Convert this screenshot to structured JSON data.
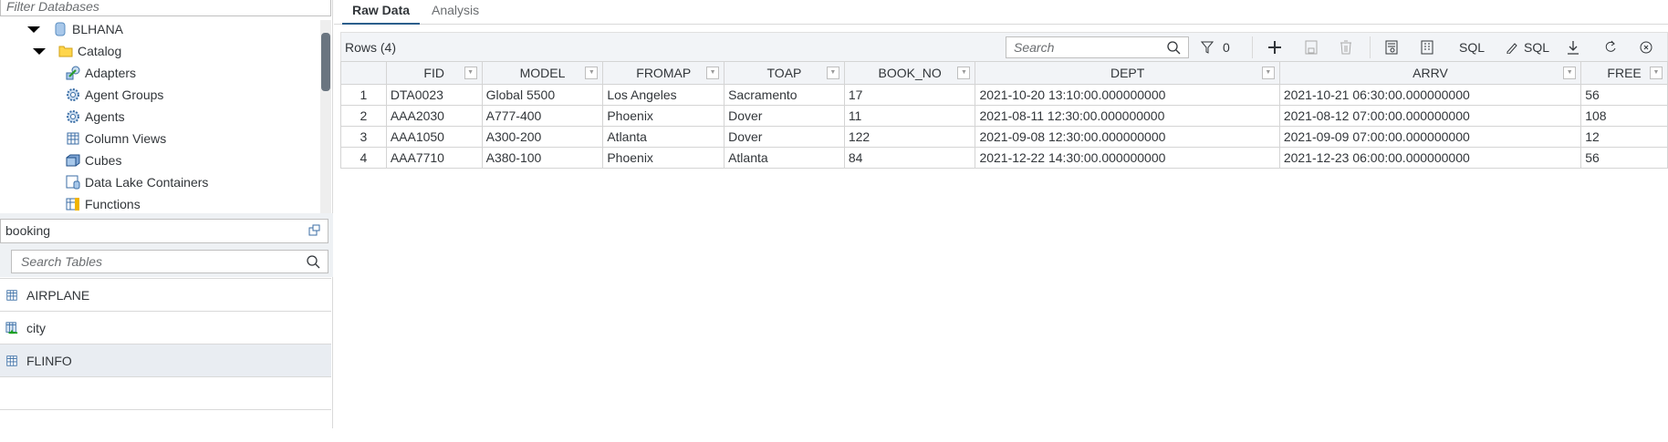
{
  "left": {
    "filter_placeholder": "Filter Databases",
    "tree": [
      {
        "label": "BLHANA",
        "icon": "database-icon",
        "level": 0,
        "expanded": true
      },
      {
        "label": "Catalog",
        "icon": "folder-icon",
        "level": 1,
        "expanded": true
      },
      {
        "label": "Adapters",
        "icon": "adapter-icon",
        "level": 2
      },
      {
        "label": "Agent Groups",
        "icon": "gear-group-icon",
        "level": 2
      },
      {
        "label": "Agents",
        "icon": "gear-icon",
        "level": 2
      },
      {
        "label": "Column Views",
        "icon": "table-icon",
        "level": 2
      },
      {
        "label": "Cubes",
        "icon": "cube-icon",
        "level": 2
      },
      {
        "label": "Data Lake Containers",
        "icon": "data-lake-icon",
        "level": 2
      },
      {
        "label": "Functions",
        "icon": "function-icon",
        "level": 2
      }
    ],
    "schema": "booking",
    "search_tables_placeholder": "Search Tables",
    "tables": [
      {
        "label": "AIRPLANE",
        "icon": "table-icon",
        "selected": false
      },
      {
        "label": "city",
        "icon": "virtual-table-icon",
        "selected": false
      },
      {
        "label": "FLINFO",
        "icon": "table-icon",
        "selected": true
      }
    ]
  },
  "tabs": [
    {
      "label": "Raw Data",
      "active": true
    },
    {
      "label": "Analysis",
      "active": false
    }
  ],
  "toolbar": {
    "rows_label": "Rows (4)",
    "search_placeholder": "Search",
    "filter_count": "0",
    "sql_label": "SQL",
    "edit_sql_label": "SQL"
  },
  "table": {
    "columns": [
      "FID",
      "MODEL",
      "FROMAP",
      "TOAP",
      "BOOK_NO",
      "DEPT",
      "ARRV",
      "FREE"
    ],
    "rows": [
      [
        "1",
        "DTA0023",
        "Global 5500",
        "Los Angeles",
        "Sacramento",
        "17",
        "2021-10-20 13:10:00.000000000",
        "2021-10-21 06:30:00.000000000",
        "56"
      ],
      [
        "2",
        "AAA2030",
        "A777-400",
        "Phoenix",
        "Dover",
        "11",
        "2021-08-11 12:30:00.000000000",
        "2021-08-12 07:00:00.000000000",
        "108"
      ],
      [
        "3",
        "AAA1050",
        "A300-200",
        "Atlanta",
        "Dover",
        "122",
        "2021-09-08 12:30:00.000000000",
        "2021-09-09 07:00:00.000000000",
        "12"
      ],
      [
        "4",
        "AAA7710",
        "A380-100",
        "Phoenix",
        "Atlanta",
        "84",
        "2021-12-22 14:30:00.000000000",
        "2021-12-23 06:00:00.000000000",
        "56"
      ]
    ]
  },
  "colors": {
    "accent": "#2b5f8c",
    "selected_row": "#e9edf2",
    "toolbar_bg": "#f2f4f7"
  }
}
